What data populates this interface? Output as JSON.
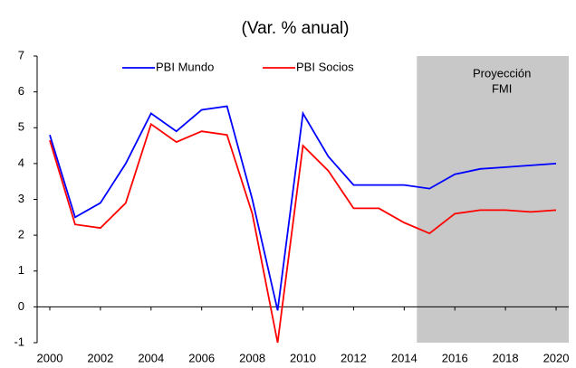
{
  "chart_data": {
    "type": "line",
    "title": "(Var. % anual)",
    "x": [
      2000,
      2001,
      2002,
      2003,
      2004,
      2005,
      2006,
      2007,
      2008,
      2009,
      2010,
      2011,
      2012,
      2013,
      2014,
      2015,
      2016,
      2017,
      2018,
      2019,
      2020
    ],
    "series": [
      {
        "name": "PBI Mundo",
        "color": "#0000ff",
        "values": [
          4.8,
          2.5,
          2.9,
          4.0,
          5.4,
          4.9,
          5.5,
          5.6,
          3.0,
          -0.1,
          5.4,
          4.2,
          3.4,
          3.4,
          3.4,
          3.3,
          3.7,
          3.85,
          3.9,
          3.95,
          4.0
        ]
      },
      {
        "name": "PBI Socios",
        "color": "#ff0000",
        "values": [
          4.65,
          2.3,
          2.2,
          2.9,
          5.1,
          4.6,
          4.9,
          4.8,
          2.6,
          -1.0,
          4.5,
          3.8,
          2.75,
          2.75,
          2.35,
          2.05,
          2.6,
          2.7,
          2.7,
          2.65,
          2.7
        ]
      }
    ],
    "xlim": [
      1999.5,
      2020.5
    ],
    "xticks": [
      2000,
      2002,
      2004,
      2006,
      2008,
      2010,
      2012,
      2014,
      2016,
      2018,
      2020
    ],
    "ylim": [
      -1,
      7
    ],
    "yticks": [
      -1,
      0,
      1,
      2,
      3,
      4,
      5,
      6,
      7
    ],
    "shaded_region": {
      "xlim": [
        2014.5,
        2020.5
      ],
      "color": "#c8c8c8",
      "label": [
        "Proyección",
        "FMI"
      ]
    },
    "legend": "top",
    "grid": false
  }
}
